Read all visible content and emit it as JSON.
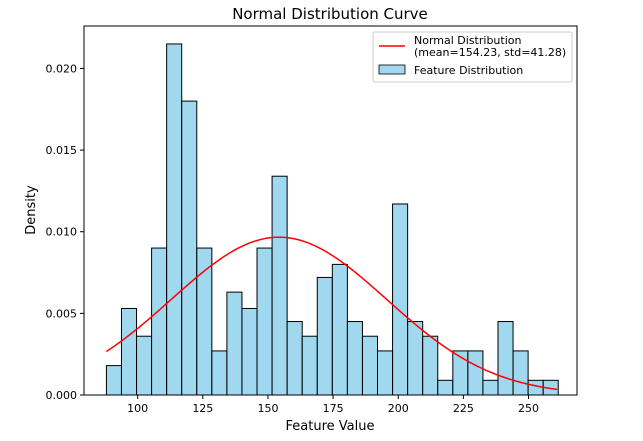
{
  "chart_data": {
    "type": "histogram",
    "title": "Normal Distribution Curve",
    "xlabel": "Feature Value",
    "ylabel": "Density",
    "xlim": [
      79.4,
      268.6
    ],
    "ylim": [
      0,
      0.0226
    ],
    "xticks": [
      100,
      125,
      150,
      175,
      200,
      225,
      250
    ],
    "yticks": [
      0.0,
      0.005,
      0.01,
      0.015,
      0.02
    ],
    "ytick_labels": [
      "0.000",
      "0.005",
      "0.010",
      "0.015",
      "0.020"
    ],
    "grid": false,
    "legend_position": "top-right",
    "histogram": {
      "name": "Feature Distribution",
      "bin_start": 88,
      "bin_width": 5.78,
      "density": [
        0.0018,
        0.0053,
        0.0036,
        0.009,
        0.0215,
        0.018,
        0.009,
        0.0027,
        0.0063,
        0.0053,
        0.009,
        0.0134,
        0.0045,
        0.0036,
        0.0072,
        0.008,
        0.0045,
        0.0036,
        0.0027,
        0.0117,
        0.0045,
        0.0036,
        0.0009,
        0.0027,
        0.0027,
        0.0009,
        0.0045,
        0.0027,
        0.0009,
        0.0009
      ],
      "fill": "#87ceeb",
      "edge": "#000000"
    },
    "curve": {
      "name_line1": "Normal Distribution",
      "name_line2": "(mean=154.23, std=41.28)",
      "mean": 154.23,
      "std": 41.28,
      "x_range": [
        88,
        261
      ],
      "color": "#ff0000"
    }
  }
}
